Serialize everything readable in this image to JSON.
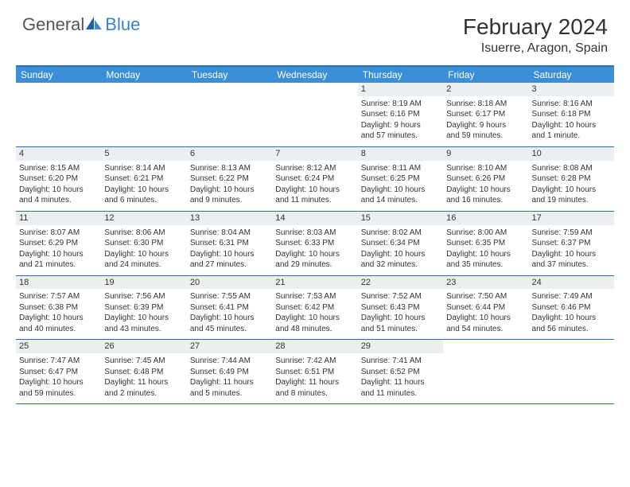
{
  "logo": {
    "part1": "General",
    "part2": "Blue"
  },
  "title": "February 2024",
  "location": "Isuerre, Aragon, Spain",
  "colors": {
    "header_bg": "#3b8fd6",
    "border": "#2b6fb5",
    "daynum_bg": "#eceff1",
    "text": "#333333",
    "logo_gray": "#555555",
    "logo_blue": "#3b7fc4"
  },
  "weekdays": [
    "Sunday",
    "Monday",
    "Tuesday",
    "Wednesday",
    "Thursday",
    "Friday",
    "Saturday"
  ],
  "weeks": [
    [
      null,
      null,
      null,
      null,
      {
        "n": "1",
        "sr": "Sunrise: 8:19 AM",
        "ss": "Sunset: 6:16 PM",
        "d1": "Daylight: 9 hours",
        "d2": "and 57 minutes."
      },
      {
        "n": "2",
        "sr": "Sunrise: 8:18 AM",
        "ss": "Sunset: 6:17 PM",
        "d1": "Daylight: 9 hours",
        "d2": "and 59 minutes."
      },
      {
        "n": "3",
        "sr": "Sunrise: 8:16 AM",
        "ss": "Sunset: 6:18 PM",
        "d1": "Daylight: 10 hours",
        "d2": "and 1 minute."
      }
    ],
    [
      {
        "n": "4",
        "sr": "Sunrise: 8:15 AM",
        "ss": "Sunset: 6:20 PM",
        "d1": "Daylight: 10 hours",
        "d2": "and 4 minutes."
      },
      {
        "n": "5",
        "sr": "Sunrise: 8:14 AM",
        "ss": "Sunset: 6:21 PM",
        "d1": "Daylight: 10 hours",
        "d2": "and 6 minutes."
      },
      {
        "n": "6",
        "sr": "Sunrise: 8:13 AM",
        "ss": "Sunset: 6:22 PM",
        "d1": "Daylight: 10 hours",
        "d2": "and 9 minutes."
      },
      {
        "n": "7",
        "sr": "Sunrise: 8:12 AM",
        "ss": "Sunset: 6:24 PM",
        "d1": "Daylight: 10 hours",
        "d2": "and 11 minutes."
      },
      {
        "n": "8",
        "sr": "Sunrise: 8:11 AM",
        "ss": "Sunset: 6:25 PM",
        "d1": "Daylight: 10 hours",
        "d2": "and 14 minutes."
      },
      {
        "n": "9",
        "sr": "Sunrise: 8:10 AM",
        "ss": "Sunset: 6:26 PM",
        "d1": "Daylight: 10 hours",
        "d2": "and 16 minutes."
      },
      {
        "n": "10",
        "sr": "Sunrise: 8:08 AM",
        "ss": "Sunset: 6:28 PM",
        "d1": "Daylight: 10 hours",
        "d2": "and 19 minutes."
      }
    ],
    [
      {
        "n": "11",
        "sr": "Sunrise: 8:07 AM",
        "ss": "Sunset: 6:29 PM",
        "d1": "Daylight: 10 hours",
        "d2": "and 21 minutes."
      },
      {
        "n": "12",
        "sr": "Sunrise: 8:06 AM",
        "ss": "Sunset: 6:30 PM",
        "d1": "Daylight: 10 hours",
        "d2": "and 24 minutes."
      },
      {
        "n": "13",
        "sr": "Sunrise: 8:04 AM",
        "ss": "Sunset: 6:31 PM",
        "d1": "Daylight: 10 hours",
        "d2": "and 27 minutes."
      },
      {
        "n": "14",
        "sr": "Sunrise: 8:03 AM",
        "ss": "Sunset: 6:33 PM",
        "d1": "Daylight: 10 hours",
        "d2": "and 29 minutes."
      },
      {
        "n": "15",
        "sr": "Sunrise: 8:02 AM",
        "ss": "Sunset: 6:34 PM",
        "d1": "Daylight: 10 hours",
        "d2": "and 32 minutes."
      },
      {
        "n": "16",
        "sr": "Sunrise: 8:00 AM",
        "ss": "Sunset: 6:35 PM",
        "d1": "Daylight: 10 hours",
        "d2": "and 35 minutes."
      },
      {
        "n": "17",
        "sr": "Sunrise: 7:59 AM",
        "ss": "Sunset: 6:37 PM",
        "d1": "Daylight: 10 hours",
        "d2": "and 37 minutes."
      }
    ],
    [
      {
        "n": "18",
        "sr": "Sunrise: 7:57 AM",
        "ss": "Sunset: 6:38 PM",
        "d1": "Daylight: 10 hours",
        "d2": "and 40 minutes."
      },
      {
        "n": "19",
        "sr": "Sunrise: 7:56 AM",
        "ss": "Sunset: 6:39 PM",
        "d1": "Daylight: 10 hours",
        "d2": "and 43 minutes."
      },
      {
        "n": "20",
        "sr": "Sunrise: 7:55 AM",
        "ss": "Sunset: 6:41 PM",
        "d1": "Daylight: 10 hours",
        "d2": "and 45 minutes."
      },
      {
        "n": "21",
        "sr": "Sunrise: 7:53 AM",
        "ss": "Sunset: 6:42 PM",
        "d1": "Daylight: 10 hours",
        "d2": "and 48 minutes."
      },
      {
        "n": "22",
        "sr": "Sunrise: 7:52 AM",
        "ss": "Sunset: 6:43 PM",
        "d1": "Daylight: 10 hours",
        "d2": "and 51 minutes."
      },
      {
        "n": "23",
        "sr": "Sunrise: 7:50 AM",
        "ss": "Sunset: 6:44 PM",
        "d1": "Daylight: 10 hours",
        "d2": "and 54 minutes."
      },
      {
        "n": "24",
        "sr": "Sunrise: 7:49 AM",
        "ss": "Sunset: 6:46 PM",
        "d1": "Daylight: 10 hours",
        "d2": "and 56 minutes."
      }
    ],
    [
      {
        "n": "25",
        "sr": "Sunrise: 7:47 AM",
        "ss": "Sunset: 6:47 PM",
        "d1": "Daylight: 10 hours",
        "d2": "and 59 minutes."
      },
      {
        "n": "26",
        "sr": "Sunrise: 7:45 AM",
        "ss": "Sunset: 6:48 PM",
        "d1": "Daylight: 11 hours",
        "d2": "and 2 minutes."
      },
      {
        "n": "27",
        "sr": "Sunrise: 7:44 AM",
        "ss": "Sunset: 6:49 PM",
        "d1": "Daylight: 11 hours",
        "d2": "and 5 minutes."
      },
      {
        "n": "28",
        "sr": "Sunrise: 7:42 AM",
        "ss": "Sunset: 6:51 PM",
        "d1": "Daylight: 11 hours",
        "d2": "and 8 minutes."
      },
      {
        "n": "29",
        "sr": "Sunrise: 7:41 AM",
        "ss": "Sunset: 6:52 PM",
        "d1": "Daylight: 11 hours",
        "d2": "and 11 minutes."
      },
      null,
      null
    ]
  ]
}
